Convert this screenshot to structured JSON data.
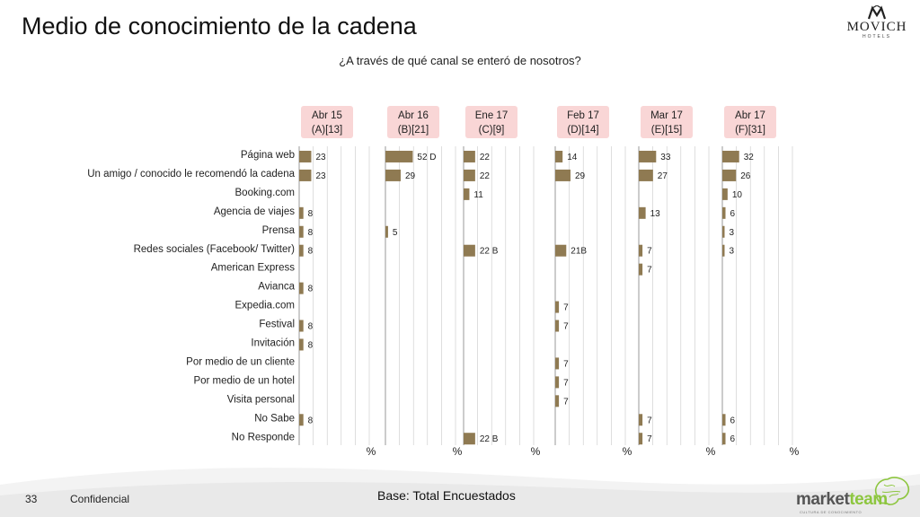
{
  "header": {
    "title": "Medio de conocimiento de la cadena",
    "subtitle": "¿A través de qué canal se enteró de nosotros?"
  },
  "brand": {
    "name": "MOVICH",
    "tagline": "HOTELS"
  },
  "footer": {
    "page_number": "33",
    "confidential": "Confidencial",
    "base": "Base: Total Encuestados",
    "partner_logo": "marketteam",
    "partner_logo_a": "market",
    "partner_logo_b": "team",
    "partner_tagline": "CULTURA DE CONOCIMIENTO"
  },
  "colors": {
    "bar": "#8f7a52",
    "header_bg": "#f9d6d6",
    "grid": "#c8c8c8",
    "brand_green": "#8dc63f"
  },
  "chart_data": {
    "type": "bar",
    "orientation": "horizontal",
    "categories": [
      "Página web",
      "Un amigo / conocido le recomendó la cadena",
      "Booking.com",
      "Agencia de viajes",
      "Prensa",
      "Redes sociales (Facebook/ Twitter)",
      "American Express",
      "Avianca",
      "Expedia.com",
      "Festival",
      "Invitación",
      "Por medio de un cliente",
      "Por medio de un hotel",
      "Visita personal",
      "No Sabe",
      "No Responde"
    ],
    "unit_label": "%",
    "xlim": [
      0,
      100
    ],
    "grid": true,
    "series": [
      {
        "period": "Abr 15",
        "code": "(A)[13]",
        "values": [
          23,
          23,
          null,
          8,
          8,
          8,
          null,
          8,
          null,
          8,
          8,
          null,
          null,
          null,
          8,
          null
        ],
        "labels": [
          "23",
          "23",
          "",
          "8",
          "8",
          "8",
          "",
          "8",
          "",
          "8",
          "8",
          "",
          "",
          "",
          "8",
          ""
        ]
      },
      {
        "period": "Abr 16",
        "code": "(B)[21]",
        "values": [
          52,
          29,
          null,
          null,
          5,
          null,
          null,
          null,
          null,
          null,
          null,
          null,
          null,
          null,
          null,
          null
        ],
        "labels": [
          "52 D",
          "29",
          "",
          "",
          "5",
          "",
          "",
          "",
          "",
          "",
          "",
          "",
          "",
          "",
          "",
          ""
        ]
      },
      {
        "period": "Ene 17",
        "code": "(C)[9]",
        "values": [
          22,
          22,
          11,
          null,
          null,
          22,
          null,
          null,
          null,
          null,
          null,
          null,
          null,
          null,
          null,
          22
        ],
        "labels": [
          "22",
          "22",
          "11",
          "",
          "",
          "22 B",
          "",
          "",
          "",
          "",
          "",
          "",
          "",
          "",
          "",
          "22 B"
        ]
      },
      {
        "period": "Feb 17",
        "code": "(D)[14]",
        "values": [
          14,
          29,
          null,
          null,
          null,
          21,
          null,
          null,
          7,
          7,
          null,
          7,
          7,
          7,
          null,
          null
        ],
        "labels": [
          "14",
          "29",
          "",
          "",
          "",
          "21B",
          "",
          "",
          "7",
          "7",
          "",
          "7",
          "7",
          "7",
          "",
          ""
        ]
      },
      {
        "period": "Mar 17",
        "code": "(E)[15]",
        "values": [
          33,
          27,
          null,
          13,
          null,
          7,
          7,
          null,
          null,
          null,
          null,
          null,
          null,
          null,
          7,
          7
        ],
        "labels": [
          "33",
          "27",
          "",
          "13",
          "",
          "7",
          "7",
          "",
          "",
          "",
          "",
          "",
          "",
          "",
          "7",
          "7"
        ]
      },
      {
        "period": "Abr 17",
        "code": "(F)[31]",
        "values": [
          32,
          26,
          10,
          6,
          3,
          3,
          null,
          null,
          null,
          null,
          null,
          null,
          null,
          null,
          6,
          6
        ],
        "labels": [
          "32",
          "26",
          "10",
          "6",
          "3",
          "3",
          "",
          "",
          "",
          "",
          "",
          "",
          "",
          "",
          "6",
          "6"
        ]
      }
    ]
  }
}
